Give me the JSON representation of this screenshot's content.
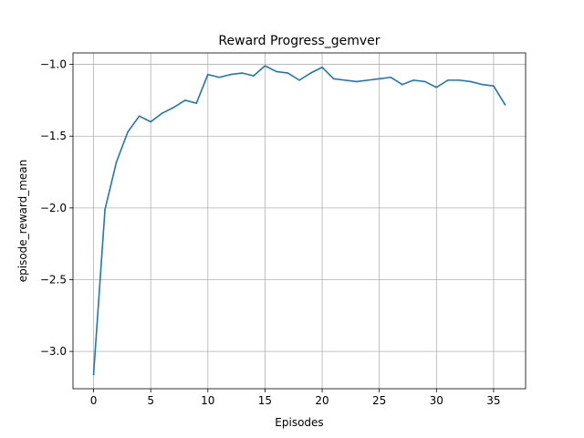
{
  "chart_data": {
    "type": "line",
    "title": "Reward Progress_gemver",
    "xlabel": "Episodes",
    "ylabel": "episode_reward_mean",
    "xlim": [
      -1.8,
      37.8
    ],
    "ylim": [
      -3.26,
      -0.92
    ],
    "xticks": [
      0,
      5,
      10,
      15,
      20,
      25,
      30,
      35
    ],
    "yticks": [
      -3.0,
      -2.5,
      -2.0,
      -1.5,
      -1.0
    ],
    "xtick_labels": [
      "0",
      "5",
      "10",
      "15",
      "20",
      "25",
      "30",
      "35"
    ],
    "ytick_labels": [
      "−3.0",
      "−2.5",
      "−2.0",
      "−1.5",
      "−1.0"
    ],
    "grid": true,
    "series": [
      {
        "color": "#1f77b4",
        "x": [
          0,
          1,
          2,
          3,
          4,
          5,
          6,
          7,
          8,
          9,
          10,
          11,
          12,
          13,
          14,
          15,
          16,
          17,
          18,
          19,
          20,
          21,
          22,
          23,
          24,
          25,
          26,
          27,
          28,
          29,
          30,
          31,
          32,
          33,
          34,
          35,
          36
        ],
        "values": [
          -3.16,
          -2.01,
          -1.68,
          -1.47,
          -1.36,
          -1.4,
          -1.34,
          -1.3,
          -1.25,
          -1.27,
          -1.07,
          -1.09,
          -1.07,
          -1.06,
          -1.08,
          -1.01,
          -1.05,
          -1.06,
          -1.11,
          -1.06,
          -1.02,
          -1.1,
          -1.11,
          -1.12,
          -1.11,
          -1.1,
          -1.09,
          -1.14,
          -1.11,
          -1.12,
          -1.16,
          -1.11,
          -1.11,
          -1.12,
          -1.14,
          -1.15,
          -1.28
        ]
      }
    ]
  }
}
